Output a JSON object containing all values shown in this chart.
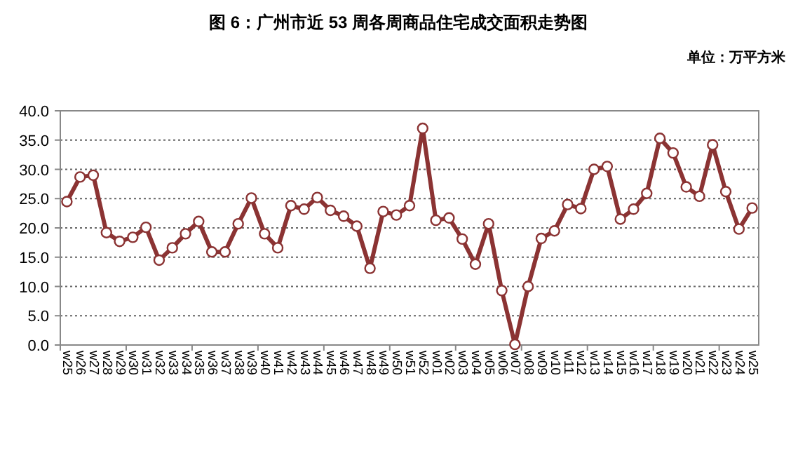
{
  "chart_data": {
    "type": "line",
    "title": "图 6：广州市近 53 周各周商品住宅成交面积走势图",
    "annotations": [
      "单位：万平方米"
    ],
    "categories": [
      "w25",
      "w26",
      "w27",
      "w28",
      "w29",
      "w30",
      "w31",
      "w32",
      "w33",
      "w34",
      "w35",
      "w36",
      "w37",
      "w38",
      "w39",
      "w40",
      "w41",
      "w42",
      "w43",
      "w44",
      "w45",
      "w46",
      "w47",
      "w48",
      "w49",
      "w50",
      "w51",
      "w52",
      "w01",
      "w02",
      "w03",
      "w04",
      "w05",
      "w06",
      "w07",
      "w08",
      "w09",
      "w10",
      "w11",
      "w12",
      "w13",
      "w14",
      "w15",
      "w16",
      "w17",
      "w18",
      "w19",
      "w20",
      "w21",
      "w22",
      "w23",
      "w24",
      "w25"
    ],
    "series": [
      {
        "color": "#8b3333",
        "values": [
          24.5,
          28.7,
          29,
          19.2,
          17.7,
          18.4,
          20.1,
          14.5,
          16.6,
          19,
          21.1,
          15.9,
          15.9,
          20.7,
          25.1,
          19,
          16.6,
          23.8,
          23.2,
          25.2,
          23,
          22,
          20.3,
          13.1,
          22.8,
          22.2,
          23.8,
          37,
          21.3,
          21.7,
          18.1,
          13.8,
          20.7,
          9.3,
          0.1,
          10,
          18.2,
          19.5,
          24,
          23.3,
          30,
          30.5,
          21.5,
          23.2,
          25.9,
          35.3,
          32.8,
          27,
          25.4,
          34.2,
          26.2,
          19.8,
          23.4
        ]
      }
    ],
    "ylim": [
      0,
      40
    ],
    "yticks": [
      {
        "value": 0,
        "label": "0.0"
      },
      {
        "value": 5,
        "label": "5.0"
      },
      {
        "value": 10,
        "label": "10.0"
      },
      {
        "value": 15,
        "label": "15.0"
      },
      {
        "value": 20,
        "label": "20.0"
      },
      {
        "value": 25,
        "label": "25.0"
      },
      {
        "value": 30,
        "label": "30.0"
      },
      {
        "value": 35,
        "label": "35.0"
      },
      {
        "value": 40,
        "label": "40.0"
      }
    ],
    "grid": "y",
    "marker": "circle",
    "line_style": "solid"
  }
}
